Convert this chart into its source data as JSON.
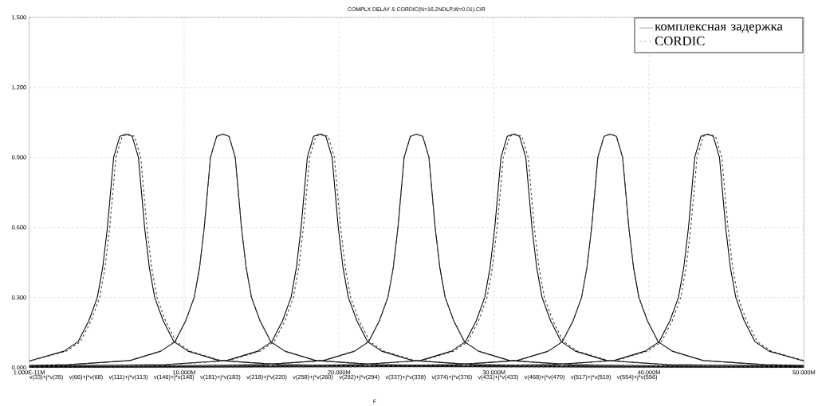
{
  "chart_data": {
    "type": "line",
    "title": "COMPLX DELAY & CORDIC(N=16,2NDLP,W=0,01).CIR",
    "xlabel": "F",
    "xlim": [
      0,
      50
    ],
    "ylim": [
      0,
      1.5
    ],
    "xticks": [
      {
        "value": 0,
        "label": "1.000E-11M"
      },
      {
        "value": 10,
        "label": "10.000M"
      },
      {
        "value": 20,
        "label": "20.000M"
      },
      {
        "value": 30,
        "label": "30.000M"
      },
      {
        "value": 40,
        "label": "40.000M"
      },
      {
        "value": 50,
        "label": "50.000M"
      }
    ],
    "yticks": [
      {
        "value": 0,
        "label": "0.000"
      },
      {
        "value": 0.3,
        "label": "0.300"
      },
      {
        "value": 0.6,
        "label": "0.600"
      },
      {
        "value": 0.9,
        "label": "0.900"
      },
      {
        "value": 1.2,
        "label": "1.200"
      },
      {
        "value": 1.5,
        "label": "1.500"
      }
    ],
    "grid": true,
    "legend": "top right",
    "annotations": [
      "v(33)+j*v(35)",
      "v(66)+j*v(68)",
      "v(111)+j*v(113)",
      "v(146)+j*v(148)",
      "v(181)+j*v(183)",
      "v(218)+j*v(220)",
      "v(258)+j*v(260)",
      "v(292)+j*v(294)",
      "v(337)+j*v(339)",
      "v(374)+j*v(376)",
      "v(431)+j*v(433)",
      "v(468)+j*v(470)",
      "v(517)+j*v(519)",
      "v(554)+j*v(556)"
    ],
    "series": [
      {
        "name": "комплексная задержка",
        "color": "#000000",
        "line_style": "solid",
        "x": [
          0,
          2.25,
          3.15,
          3.85,
          4.4,
          4.75,
          5.05,
          5.45,
          5.85,
          6.25,
          6.65,
          7.05,
          7.45,
          7.75,
          8.1,
          8.65,
          9.35,
          10.25,
          12.25,
          16.25,
          26.25,
          50
        ],
        "values": [
          0.028,
          0.07,
          0.11,
          0.2,
          0.3,
          0.43,
          0.6,
          0.9,
          0.99,
          1.0,
          0.99,
          0.9,
          0.6,
          0.43,
          0.3,
          0.2,
          0.11,
          0.07,
          0.03,
          0.012,
          0.004,
          0.001
        ]
      },
      {
        "name": "CORDIC",
        "color": "#444444",
        "line_style": "dashed",
        "x": [
          0,
          2.4,
          3.3,
          4.0,
          4.55,
          4.9,
          5.2,
          5.6,
          6.0,
          6.4,
          6.8,
          7.2,
          7.6,
          7.9,
          8.25,
          8.8,
          9.5,
          10.4,
          12.4,
          16.4,
          26.4,
          50
        ],
        "values": [
          0.027,
          0.07,
          0.11,
          0.2,
          0.3,
          0.43,
          0.6,
          0.9,
          0.99,
          1.0,
          0.99,
          0.9,
          0.6,
          0.43,
          0.3,
          0.2,
          0.11,
          0.07,
          0.03,
          0.012,
          0.004,
          0.001
        ]
      },
      {
        "color": "#000000",
        "line_style": "solid",
        "x": [
          0,
          2.5,
          6.5,
          8.5,
          9.4,
          10.1,
          10.65,
          11.0,
          11.3,
          11.7,
          12.1,
          12.5,
          12.9,
          13.3,
          13.7,
          14.0,
          14.35,
          14.9,
          15.6,
          16.5,
          18.5,
          22.5,
          32.5,
          50
        ],
        "values": [
          0.009,
          0.012,
          0.03,
          0.07,
          0.11,
          0.2,
          0.3,
          0.43,
          0.6,
          0.9,
          0.99,
          1.0,
          0.99,
          0.9,
          0.6,
          0.43,
          0.3,
          0.2,
          0.11,
          0.07,
          0.03,
          0.012,
          0.004,
          0.002
        ]
      },
      {
        "color": "#444444",
        "line_style": "dashed",
        "x": [
          0,
          2.5,
          6.5,
          8.5,
          9.4,
          10.1,
          10.65,
          11.0,
          11.3,
          11.7,
          12.1,
          12.5,
          12.9,
          13.3,
          13.7,
          14.0,
          14.35,
          14.9,
          15.6,
          16.5,
          18.5,
          22.5,
          32.5,
          50
        ],
        "values": [
          0.009,
          0.012,
          0.03,
          0.07,
          0.11,
          0.2,
          0.3,
          0.43,
          0.6,
          0.9,
          0.99,
          1.0,
          0.99,
          0.9,
          0.6,
          0.43,
          0.3,
          0.2,
          0.11,
          0.07,
          0.03,
          0.012,
          0.004,
          0.002
        ]
      },
      {
        "color": "#000000",
        "line_style": "solid",
        "x": [
          0,
          8.75,
          12.75,
          14.75,
          15.65,
          16.35,
          16.9,
          17.25,
          17.55,
          17.95,
          18.35,
          18.75,
          19.15,
          19.55,
          19.95,
          20.25,
          20.6,
          21.15,
          21.85,
          22.75,
          24.75,
          28.75,
          38.75,
          50
        ],
        "values": [
          0.006,
          0.012,
          0.03,
          0.07,
          0.11,
          0.2,
          0.3,
          0.43,
          0.6,
          0.9,
          0.99,
          1.0,
          0.99,
          0.9,
          0.6,
          0.43,
          0.3,
          0.2,
          0.11,
          0.07,
          0.03,
          0.012,
          0.004,
          0.002
        ]
      },
      {
        "color": "#444444",
        "line_style": "dashed",
        "x": [
          0,
          8.9,
          12.9,
          14.9,
          15.8,
          16.5,
          17.05,
          17.4,
          17.7,
          18.1,
          18.5,
          18.9,
          19.3,
          19.7,
          20.1,
          20.4,
          20.75,
          21.3,
          22.0,
          22.9,
          24.9,
          28.9,
          38.9,
          50
        ],
        "values": [
          0.006,
          0.012,
          0.03,
          0.07,
          0.11,
          0.2,
          0.3,
          0.43,
          0.6,
          0.9,
          0.99,
          1.0,
          0.99,
          0.9,
          0.6,
          0.43,
          0.3,
          0.2,
          0.11,
          0.07,
          0.03,
          0.012,
          0.004,
          0.002
        ]
      },
      {
        "color": "#000000",
        "line_style": "solid",
        "x": [
          0,
          5,
          15,
          19,
          21,
          21.9,
          22.6,
          23.15,
          23.5,
          23.8,
          24.2,
          24.6,
          25,
          25.4,
          25.8,
          26.2,
          26.5,
          26.85,
          27.4,
          28.1,
          29,
          31,
          35,
          45,
          50
        ],
        "values": [
          0.003,
          0.004,
          0.012,
          0.03,
          0.07,
          0.11,
          0.2,
          0.3,
          0.43,
          0.6,
          0.9,
          0.99,
          1.0,
          0.99,
          0.9,
          0.6,
          0.43,
          0.3,
          0.2,
          0.11,
          0.07,
          0.03,
          0.012,
          0.004,
          0.003
        ]
      },
      {
        "color": "#444444",
        "line_style": "dashed",
        "x": [
          0,
          5,
          15,
          19,
          21,
          21.9,
          22.6,
          23.15,
          23.5,
          23.8,
          24.2,
          24.6,
          25,
          25.4,
          25.8,
          26.2,
          26.5,
          26.85,
          27.4,
          28.1,
          29,
          31,
          35,
          45,
          50
        ],
        "values": [
          0.003,
          0.004,
          0.012,
          0.03,
          0.07,
          0.11,
          0.2,
          0.3,
          0.43,
          0.6,
          0.9,
          0.99,
          1.0,
          0.99,
          0.9,
          0.6,
          0.43,
          0.3,
          0.2,
          0.11,
          0.07,
          0.03,
          0.012,
          0.004,
          0.003
        ]
      },
      {
        "color": "#000000",
        "line_style": "solid",
        "x": [
          0,
          11.25,
          21.25,
          25.25,
          27.25,
          28.15,
          28.85,
          29.4,
          29.75,
          30.05,
          30.45,
          30.85,
          31.25,
          31.65,
          32.05,
          32.45,
          32.75,
          33.1,
          33.65,
          34.35,
          35.25,
          37.25,
          41.25,
          50
        ],
        "values": [
          0.002,
          0.004,
          0.012,
          0.03,
          0.07,
          0.11,
          0.2,
          0.3,
          0.43,
          0.6,
          0.9,
          0.99,
          1.0,
          0.99,
          0.9,
          0.6,
          0.43,
          0.3,
          0.2,
          0.11,
          0.07,
          0.03,
          0.012,
          0.006
        ]
      },
      {
        "color": "#444444",
        "line_style": "dashed",
        "x": [
          0,
          11.4,
          21.4,
          25.4,
          27.4,
          28.3,
          29.0,
          29.55,
          29.9,
          30.2,
          30.6,
          31.0,
          31.4,
          31.8,
          32.2,
          32.6,
          32.9,
          33.25,
          33.8,
          34.5,
          35.4,
          37.4,
          41.4,
          50
        ],
        "values": [
          0.002,
          0.004,
          0.012,
          0.03,
          0.07,
          0.11,
          0.2,
          0.3,
          0.43,
          0.6,
          0.9,
          0.99,
          1.0,
          0.99,
          0.9,
          0.6,
          0.43,
          0.3,
          0.2,
          0.11,
          0.07,
          0.03,
          0.012,
          0.006
        ]
      },
      {
        "color": "#000000",
        "line_style": "solid",
        "x": [
          0,
          17.5,
          27.5,
          31.5,
          33.5,
          34.4,
          35.1,
          35.65,
          36.0,
          36.3,
          36.7,
          37.1,
          37.5,
          37.9,
          38.3,
          38.7,
          39.0,
          39.35,
          39.9,
          40.6,
          41.5,
          43.5,
          47.5,
          50
        ],
        "values": [
          0.002,
          0.004,
          0.012,
          0.03,
          0.07,
          0.11,
          0.2,
          0.3,
          0.43,
          0.6,
          0.9,
          0.99,
          1.0,
          0.99,
          0.9,
          0.6,
          0.43,
          0.3,
          0.2,
          0.11,
          0.07,
          0.03,
          0.012,
          0.009
        ]
      },
      {
        "color": "#444444",
        "line_style": "dashed",
        "x": [
          0,
          17.5,
          27.5,
          31.5,
          33.5,
          34.4,
          35.1,
          35.65,
          36.0,
          36.3,
          36.7,
          37.1,
          37.5,
          37.9,
          38.3,
          38.7,
          39.0,
          39.35,
          39.9,
          40.6,
          41.5,
          43.5,
          47.5,
          50
        ],
        "values": [
          0.002,
          0.004,
          0.012,
          0.03,
          0.07,
          0.11,
          0.2,
          0.3,
          0.43,
          0.6,
          0.9,
          0.99,
          1.0,
          0.99,
          0.9,
          0.6,
          0.43,
          0.3,
          0.2,
          0.11,
          0.07,
          0.03,
          0.012,
          0.009
        ]
      },
      {
        "color": "#000000",
        "line_style": "solid",
        "x": [
          0,
          23.75,
          33.75,
          37.75,
          39.75,
          40.65,
          41.35,
          41.9,
          42.25,
          42.55,
          42.95,
          43.35,
          43.75,
          44.15,
          44.55,
          44.95,
          45.25,
          45.6,
          46.15,
          46.85,
          47.75,
          50
        ],
        "values": [
          0.001,
          0.004,
          0.012,
          0.03,
          0.07,
          0.11,
          0.2,
          0.3,
          0.43,
          0.6,
          0.9,
          0.99,
          1.0,
          0.99,
          0.9,
          0.6,
          0.43,
          0.3,
          0.2,
          0.11,
          0.07,
          0.028
        ]
      },
      {
        "color": "#444444",
        "line_style": "dashed",
        "x": [
          0,
          23.9,
          33.9,
          37.9,
          39.9,
          40.8,
          41.5,
          42.05,
          42.4,
          42.7,
          43.1,
          43.5,
          43.9,
          44.3,
          44.7,
          45.1,
          45.4,
          45.75,
          46.3,
          47.0,
          47.9,
          50
        ],
        "values": [
          0.001,
          0.004,
          0.012,
          0.03,
          0.07,
          0.11,
          0.2,
          0.3,
          0.43,
          0.6,
          0.9,
          0.99,
          1.0,
          0.99,
          0.9,
          0.6,
          0.43,
          0.3,
          0.2,
          0.11,
          0.07,
          0.03
        ]
      }
    ]
  }
}
